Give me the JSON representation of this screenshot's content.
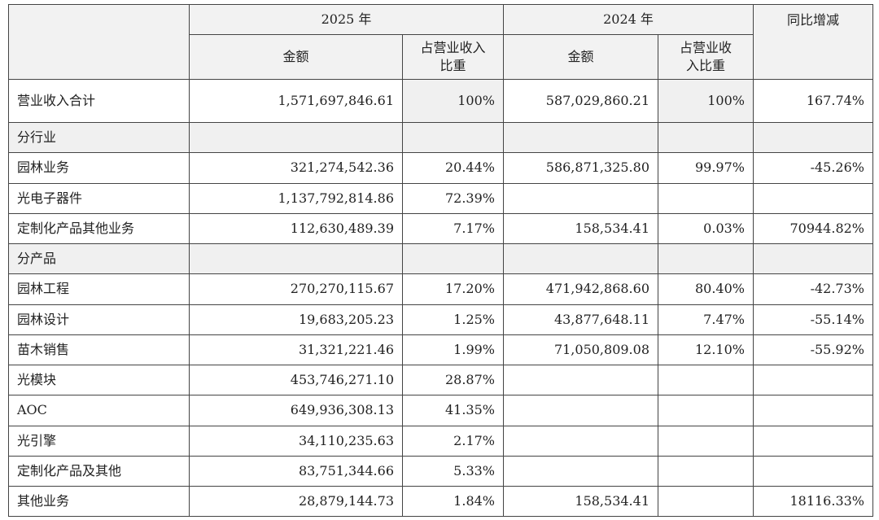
{
  "header": {
    "year_2025": "2025 年",
    "year_2024": "2024 年",
    "yoy": "同比增减",
    "amount_2025": "金额",
    "share_2025": "占营业收入\n比重",
    "amount_2024": "金额",
    "share_2024": "占营业收\n入比重"
  },
  "table": {
    "rows": [
      [
        "营业收入合计",
        "1,571,697,846.61",
        "100%",
        "587,029,860.21",
        "100%",
        "167.74%"
      ],
      [
        "分行业",
        null,
        null,
        null,
        null,
        null
      ],
      [
        "园林业务",
        "321,274,542.36",
        "20.44%",
        "586,871,325.80",
        "99.97%",
        "-45.26%"
      ],
      [
        "光电子器件",
        "1,137,792,814.86",
        "72.39%",
        null,
        null,
        null
      ],
      [
        "定制化产品其他业务",
        "112,630,489.39",
        "7.17%",
        "158,534.41",
        "0.03%",
        "70944.82%"
      ],
      [
        "分产品",
        null,
        null,
        null,
        null,
        null
      ],
      [
        "园林工程",
        "270,270,115.67",
        "17.20%",
        "471,942,868.60",
        "80.40%",
        "-42.73%"
      ],
      [
        "园林设计",
        "19,683,205.23",
        "1.25%",
        "43,877,648.11",
        "7.47%",
        "-55.14%"
      ],
      [
        "苗木销售",
        "31,321,221.46",
        "1.99%",
        "71,050,809.08",
        "12.10%",
        "-55.92%"
      ],
      [
        "光模块",
        "453,746,271.10",
        "28.87%",
        null,
        null,
        null
      ],
      [
        "AOC",
        "649,936,308.13",
        "41.35%",
        null,
        null,
        null
      ],
      [
        "光引擎",
        "34,110,235.63",
        "2.17%",
        null,
        null,
        null
      ],
      [
        "定制化产品及其他",
        "83,751,344.66",
        "5.33%",
        null,
        null,
        null
      ],
      [
        "其他业务",
        "28,879,144.73",
        "1.84%",
        "158,534.41",
        null,
        "18116.33%"
      ]
    ]
  }
}
